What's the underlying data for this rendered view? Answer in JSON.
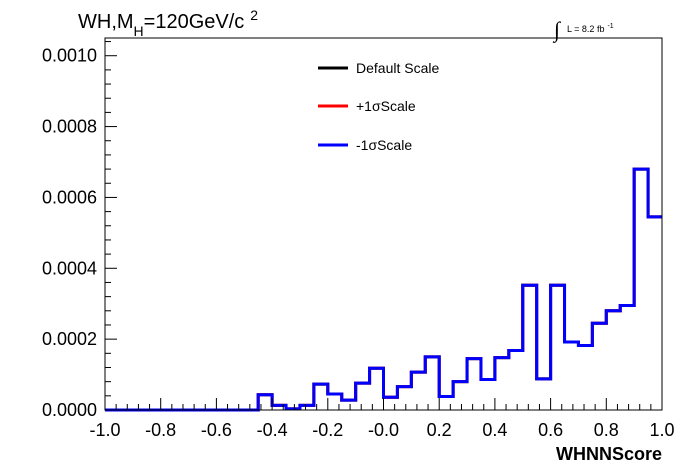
{
  "chart_data": {
    "type": "step",
    "title_parts": {
      "main": "WH,M",
      "sub": "H",
      "after": "=120GeV/c",
      "sup": "2"
    },
    "lumi_label": {
      "integral": "∫",
      "text": "L = 8.2 fb",
      "sup": "-1"
    },
    "xlabel": "WHNNScore",
    "ylabel": "",
    "xlim": [
      -1.0,
      1.0
    ],
    "ylim": [
      0,
      0.00105
    ],
    "x_ticks": [
      "-1.0",
      "-0.8",
      "-0.6",
      "-0.4",
      "-0.2",
      "-0.0",
      "0.2",
      "0.4",
      "0.6",
      "0.8",
      "1.0"
    ],
    "y_ticks": [
      "0.0000",
      "0.0002",
      "0.0004",
      "0.0006",
      "0.0008",
      "0.0010"
    ],
    "bin_edges": [
      -1.0,
      -0.95,
      -0.9,
      -0.85,
      -0.8,
      -0.75,
      -0.7,
      -0.65,
      -0.6,
      -0.55,
      -0.5,
      -0.45,
      -0.4,
      -0.35,
      -0.3,
      -0.25,
      -0.2,
      -0.15,
      -0.1,
      -0.05,
      0.0,
      0.05,
      0.1,
      0.15,
      0.2,
      0.25,
      0.3,
      0.35,
      0.4,
      0.45,
      0.5,
      0.55,
      0.6,
      0.65,
      0.7,
      0.75,
      0.8,
      0.85,
      0.9,
      0.95,
      1.0
    ],
    "series": [
      {
        "name": "Default Scale",
        "color": "#000000",
        "values": [
          0,
          0,
          0,
          0,
          0,
          0,
          0,
          0,
          0,
          0,
          0,
          4.3e-05,
          1.3e-05,
          3e-06,
          1.3e-05,
          7.3e-05,
          4.5e-05,
          2.8e-05,
          7.6e-05,
          0.000118,
          3.6e-05,
          6.6e-05,
          0.000107,
          0.00015,
          3.8e-05,
          8e-05,
          0.000145,
          8.6e-05,
          0.000148,
          0.000168,
          0.000352,
          8.8e-05,
          0.000352,
          0.000192,
          0.000182,
          0.000245,
          0.00028,
          0.000295,
          0.00068,
          0.000545
        ]
      },
      {
        "name": "+1σScale",
        "color": "#ff0000",
        "values": [
          0,
          0,
          0,
          0,
          0,
          0,
          0,
          0,
          0,
          0,
          0,
          4.3e-05,
          1.3e-05,
          3e-06,
          1.3e-05,
          7.3e-05,
          4.5e-05,
          2.8e-05,
          7.6e-05,
          0.000118,
          3.6e-05,
          6.6e-05,
          0.000107,
          0.00015,
          3.8e-05,
          8e-05,
          0.000145,
          8.6e-05,
          0.000148,
          0.000168,
          0.000352,
          8.8e-05,
          0.000352,
          0.000192,
          0.000182,
          0.000245,
          0.00028,
          0.000295,
          0.00068,
          0.000545
        ]
      },
      {
        "name": "-1σScale",
        "color": "#0000ff",
        "values": [
          0,
          0,
          0,
          0,
          0,
          0,
          0,
          0,
          0,
          0,
          0,
          4.3e-05,
          1.3e-05,
          3e-06,
          1.3e-05,
          7.3e-05,
          4.5e-05,
          2.8e-05,
          7.6e-05,
          0.000118,
          3.6e-05,
          6.6e-05,
          0.000107,
          0.00015,
          3.8e-05,
          8e-05,
          0.000145,
          8.6e-05,
          0.000148,
          0.000168,
          0.000352,
          8.8e-05,
          0.000352,
          0.000192,
          0.000182,
          0.000245,
          0.00028,
          0.000295,
          0.00068,
          0.000545
        ]
      }
    ],
    "legend_placement": "top-center",
    "grid": false
  }
}
